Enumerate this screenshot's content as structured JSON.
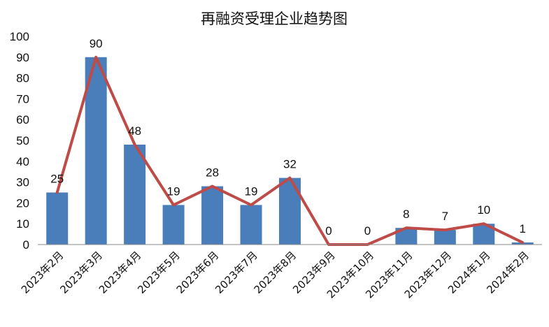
{
  "chart_data": {
    "type": "bar",
    "title": "再融资受理企业趋势图",
    "xlabel": "",
    "ylabel": "",
    "ylim": [
      0,
      100
    ],
    "yticks": [
      0,
      10,
      20,
      30,
      40,
      50,
      60,
      70,
      80,
      90,
      100
    ],
    "grid": false,
    "legend": "none",
    "categories": [
      "2023年2月",
      "2023年3月",
      "2023年4月",
      "2023年5月",
      "2023年6月",
      "2023年7月",
      "2023年8月",
      "2023年9月",
      "2023年10月",
      "2023年11月",
      "2023年12月",
      "2024年1月",
      "2024年2月"
    ],
    "series": [
      {
        "type": "bar",
        "values": [
          25,
          90,
          48,
          19,
          28,
          19,
          32,
          0,
          0,
          8,
          7,
          10,
          1
        ],
        "color": "#4a7ebb"
      },
      {
        "type": "line",
        "values": [
          25,
          90,
          48,
          19,
          28,
          19,
          32,
          0,
          0,
          8,
          7,
          10,
          1
        ],
        "color": "#be4b48"
      }
    ],
    "data_labels": [
      "25",
      "90",
      "48",
      "19",
      "28",
      "19",
      "32",
      "0",
      "0",
      "8",
      "7",
      "10",
      "1"
    ]
  }
}
